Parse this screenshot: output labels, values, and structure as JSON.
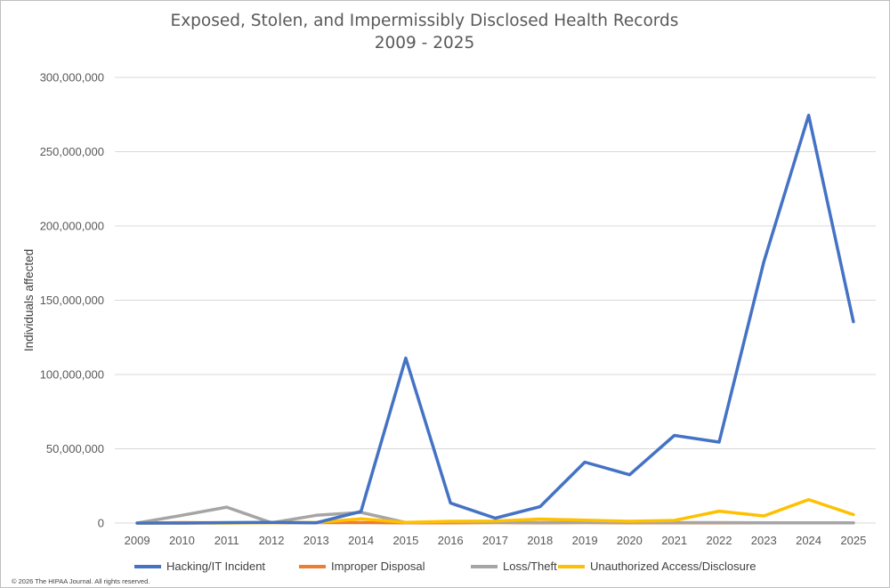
{
  "chart_data": {
    "type": "line",
    "title": "Exposed, Stolen, and Impermissibly Disclosed Health Records",
    "subtitle": "2009 - 2025",
    "ylabel": "Individuals affected",
    "xlabel": "",
    "categories": [
      "2009",
      "2010",
      "2011",
      "2012",
      "2013",
      "2014",
      "2015",
      "2016",
      "2017",
      "2018",
      "2019",
      "2020",
      "2021",
      "2022",
      "2023",
      "2024",
      "2025"
    ],
    "ylim": [
      0,
      300000000
    ],
    "yticks": [
      0,
      50000000,
      100000000,
      150000000,
      200000000,
      250000000,
      300000000
    ],
    "ytick_labels": [
      "0",
      "50,000,000",
      "100,000,000",
      "150,000,000",
      "200,000,000",
      "250,000,000",
      "300,000,000"
    ],
    "grid": true,
    "legend_position": "bottom",
    "series": [
      {
        "name": "Hacking/IT Incident",
        "color": "#4472C4",
        "values": [
          0,
          0,
          300000,
          500000,
          200000,
          7800000,
          111000000,
          13500000,
          3300000,
          11000000,
          41000000,
          32500000,
          59000000,
          54500000,
          176000000,
          274500000,
          135500000
        ]
      },
      {
        "name": "Improper Disposal",
        "color": "#ED7D31",
        "values": [
          0,
          300000,
          200000,
          300000,
          300000,
          300000,
          200000,
          200000,
          300000,
          200000,
          300000,
          100000,
          100000,
          100000,
          100000,
          100000,
          100000
        ]
      },
      {
        "name": "Loss/Theft",
        "color": "#A5A5A5",
        "values": [
          0,
          5200000,
          10700000,
          200000,
          5200000,
          7200000,
          300000,
          800000,
          400000,
          300000,
          500000,
          300000,
          300000,
          300000,
          100000,
          100000,
          100000
        ]
      },
      {
        "name": "Unauthorized Access/Disclosure",
        "color": "#FFC000",
        "values": [
          0,
          0,
          0,
          300000,
          300000,
          2900000,
          500000,
          1200000,
          1300000,
          2700000,
          2000000,
          1200000,
          1800000,
          8000000,
          4800000,
          15800000,
          5700000
        ]
      }
    ]
  },
  "footer": {
    "copyright": "© 2026 The HIPAA Journal. All rights reserved."
  }
}
